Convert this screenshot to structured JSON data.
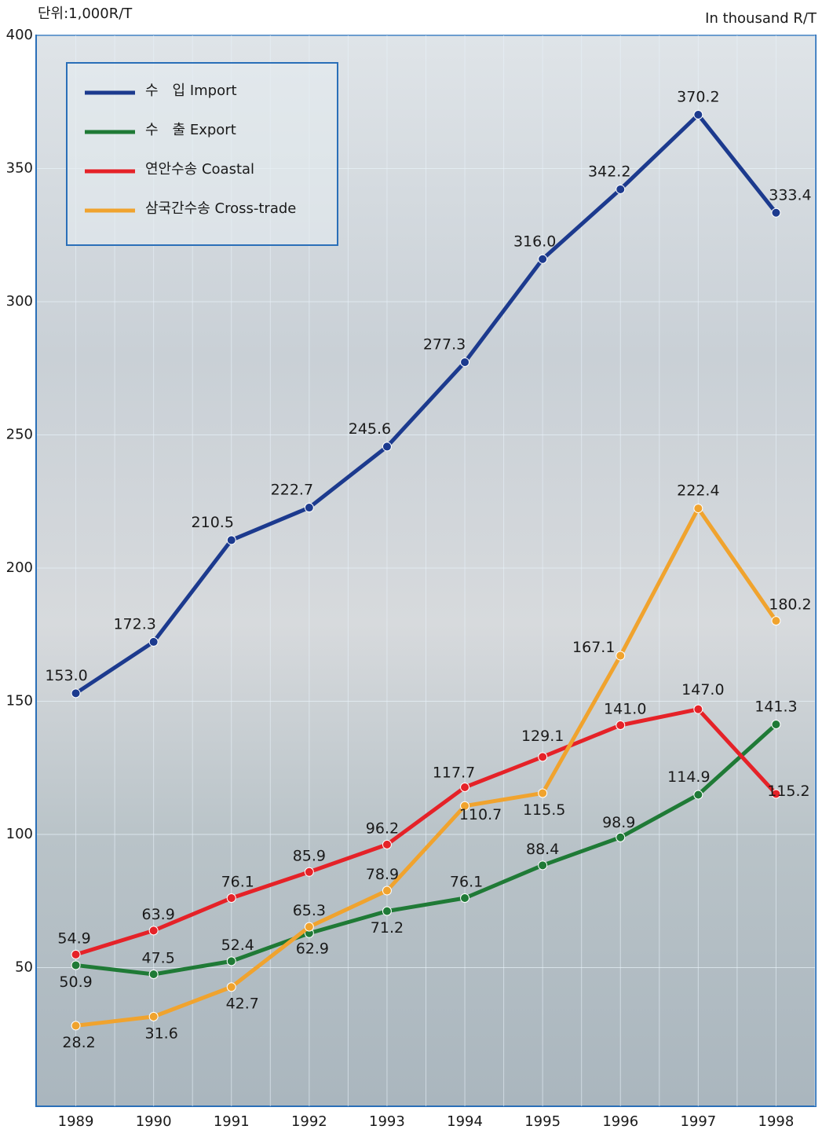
{
  "chart_data": {
    "type": "line",
    "unit_label": "단위:1,000R/T",
    "unit_label_en": "In thousand R/T",
    "categories": [
      "1989",
      "1990",
      "1991",
      "1992",
      "1993",
      "1994",
      "1995",
      "1996",
      "1997",
      "1998"
    ],
    "ylim": [
      0,
      400
    ],
    "yticks": [
      50,
      100,
      150,
      200,
      250,
      300,
      350,
      400
    ],
    "grid": true,
    "legend": "upper left",
    "series": [
      {
        "name": "수　입 Import",
        "color": "#1c3a8e",
        "values": [
          153.0,
          172.3,
          210.5,
          222.7,
          245.6,
          277.3,
          316.0,
          342.2,
          370.2,
          333.4
        ],
        "value_labels": [
          "153.0",
          "172.3",
          "210.5",
          "222.7",
          "245.6",
          "277.3",
          "316.0",
          "342.2",
          "370.2",
          "333.4"
        ]
      },
      {
        "name": "수　출 Export",
        "color": "#1f7a36",
        "values": [
          50.9,
          47.5,
          52.4,
          62.9,
          71.2,
          76.1,
          88.4,
          98.9,
          114.9,
          141.3
        ],
        "value_labels": [
          "50.9",
          "47.5",
          "52.4",
          "62.9",
          "71.2",
          "76.1",
          "88.4",
          "98.9",
          "114.9",
          "141.3"
        ]
      },
      {
        "name": "연안수송 Coastal",
        "color": "#e52228",
        "values": [
          54.9,
          63.9,
          76.1,
          85.9,
          96.2,
          117.7,
          129.1,
          141.0,
          147.0,
          115.2
        ],
        "value_labels": [
          "54.9",
          "63.9",
          "76.1",
          "85.9",
          "96.2",
          "117.7",
          "129.1",
          "141.0",
          "147.0",
          "115.2"
        ]
      },
      {
        "name": "삼국간수송 Cross-trade",
        "color": "#f0a32e",
        "values": [
          28.2,
          31.6,
          42.7,
          65.3,
          78.9,
          110.7,
          115.5,
          167.1,
          222.4,
          180.2
        ],
        "value_labels": [
          "28.2",
          "31.6",
          "42.7",
          "65.3",
          "78.9",
          "110.7",
          "115.5",
          "167.1",
          "222.4",
          "180.2"
        ]
      }
    ]
  }
}
